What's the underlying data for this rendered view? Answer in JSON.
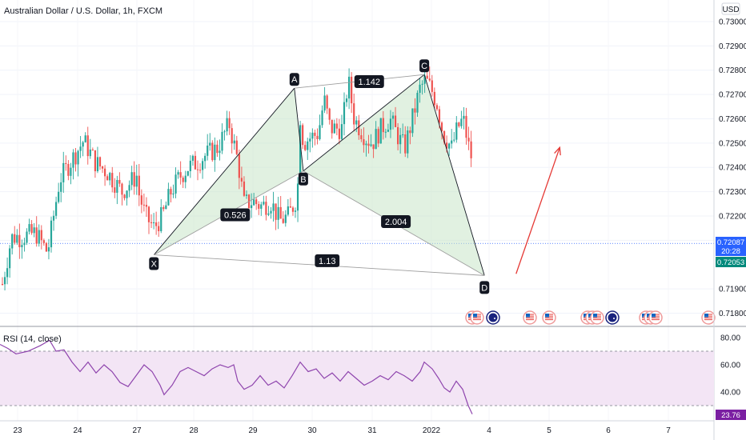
{
  "chart_data": [
    {
      "type": "candlestick",
      "title": "Australian Dollar / U.S. Dollar, 1h, FXCM",
      "currency": "USD",
      "y_ticks": [
        "0.73000",
        "0.72900",
        "0.72800",
        "0.72700",
        "0.72600",
        "0.72500",
        "0.72400",
        "0.72300",
        "0.72200",
        "0.72100",
        "0.71900",
        "0.71800"
      ],
      "x_ticks": [
        "23",
        "24",
        "27",
        "28",
        "29",
        "30",
        "31",
        "2022",
        "4",
        "5",
        "6",
        "7"
      ],
      "ylim": [
        0.7174,
        0.7307
      ],
      "last_price": "0.72087",
      "countdown": "20:28",
      "marker_price": "0.72053",
      "up_color": "#26a69a",
      "down_color": "#ef5350",
      "pattern": {
        "points": [
          {
            "label": "X",
            "t": 27.3,
            "price": 0.7204
          },
          {
            "label": "A",
            "t": 29.7,
            "price": 0.72726
          },
          {
            "label": "B",
            "t": 29.85,
            "price": 0.72385
          },
          {
            "label": "C",
            "t": 31.88,
            "price": 0.72782
          },
          {
            "label": "D",
            "t": 32.92,
            "price": 0.71955
          }
        ],
        "ratios": [
          {
            "text": "0.526",
            "t": 28.7,
            "price": 0.72205
          },
          {
            "text": "1.142",
            "t": 30.95,
            "price": 0.72753
          },
          {
            "text": "2.004",
            "t": 31.4,
            "price": 0.72177
          },
          {
            "text": "1.13",
            "t": 30.25,
            "price": 0.72016
          }
        ],
        "fill_color": "#c8e6c9",
        "projection_color": "#e53935"
      }
    },
    {
      "type": "line",
      "title": "RSI (14, close)",
      "y_ticks": [
        "80.00",
        "60.00",
        "40.00"
      ],
      "ylim": [
        17,
        88
      ],
      "band": [
        30,
        70
      ],
      "last_value": "23.76",
      "line_color": "#8e44ad",
      "band_color": "#f3e5f5"
    }
  ],
  "event_markers": [
    "flag-us",
    "flag-us",
    "flag-au",
    "flag-us",
    "flag-us",
    "flag-us",
    "flag-us",
    "flag-us",
    "flag-au",
    "flag-us",
    "flag-us",
    "flag-us",
    "flag-us"
  ]
}
